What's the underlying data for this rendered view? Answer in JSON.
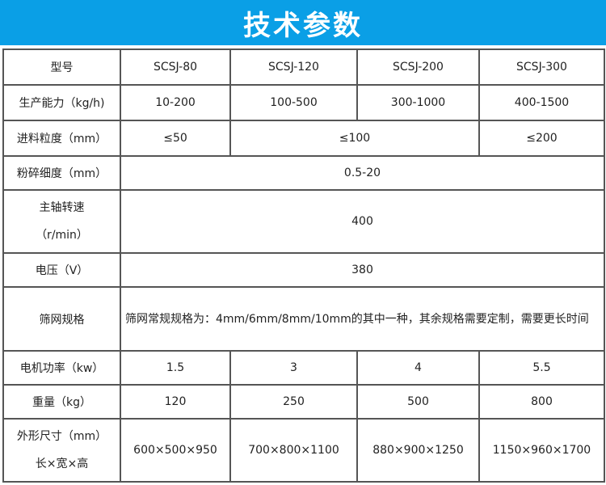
{
  "title": "技术参数",
  "rows": {
    "model": {
      "label": "型号",
      "values": [
        "SCSJ-80",
        "SCSJ-120",
        "SCSJ-200",
        "SCSJ-300"
      ]
    },
    "capacity": {
      "label": "生产能力（kg/h)",
      "values": [
        "10-200",
        "100-500",
        "300-1000",
        "400-1500"
      ]
    },
    "feed_size": {
      "label": "进料粒度（mm）",
      "values": [
        "≤50",
        "≤100",
        "≤200"
      ]
    },
    "fineness": {
      "label": "粉碎细度（mm）",
      "value": "0.5-20"
    },
    "speed": {
      "label_line1": "主轴转速",
      "label_line2": "（r/min）",
      "value": "400"
    },
    "voltage": {
      "label": "电压（V）",
      "value": "380"
    },
    "screen": {
      "label": "筛网规格",
      "value": "筛网常规规格为：4mm/6mm/8mm/10mm的其中一种，其余规格需要定制，需要更长时间"
    },
    "power": {
      "label": "电机功率（kw）",
      "values": [
        "1.5",
        "3",
        "4",
        "5.5"
      ]
    },
    "weight": {
      "label": "重量（kg）",
      "values": [
        "120",
        "250",
        "500",
        "800"
      ]
    },
    "dimensions": {
      "label_line1": "外形尺寸（mm）",
      "label_line2": "长×宽×高",
      "values": [
        "600×500×950",
        "700×800×1100",
        "880×900×1250",
        "1150×960×1700"
      ]
    }
  }
}
